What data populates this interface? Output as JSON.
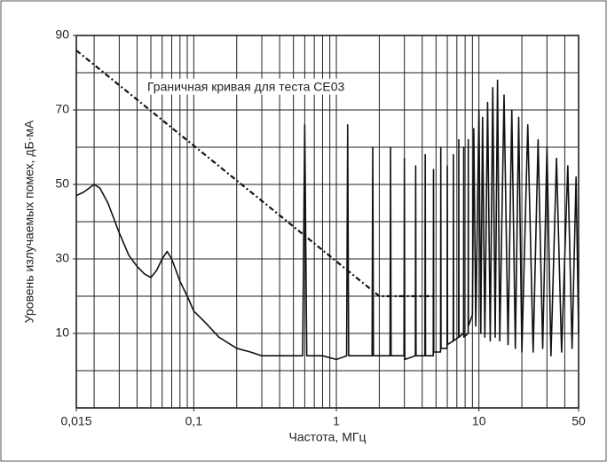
{
  "chart_data": {
    "type": "line",
    "xlabel": "Частота, МГц",
    "ylabel": "Уровень излучаемых помех, дБ·мА",
    "annotation": "Граничная кривая для теста CE03",
    "xscale": "log",
    "xlim": [
      0.015,
      50
    ],
    "ylim": [
      -10,
      90
    ],
    "xticks": [
      {
        "value": 0.015,
        "label": "0,015"
      },
      {
        "value": 0.1,
        "label": "0,1"
      },
      1,
      10,
      50
    ],
    "yticks": [
      10,
      30,
      50,
      70,
      90
    ],
    "xgrid": [
      0.02,
      0.03,
      0.04,
      0.05,
      0.06,
      0.07,
      0.08,
      0.09,
      0.1,
      0.2,
      0.3,
      0.4,
      0.5,
      0.6,
      0.7,
      0.8,
      0.9,
      1,
      2,
      3,
      4,
      5,
      6,
      7,
      8,
      9,
      10,
      20,
      30,
      40
    ],
    "ygrid": [
      0,
      10,
      20,
      30,
      40,
      50,
      60,
      70,
      80
    ],
    "grid": true,
    "series": [
      {
        "color": "#111111",
        "style": "solid",
        "x": [
          0.015,
          0.017,
          0.02,
          0.022,
          0.025,
          0.03,
          0.035,
          0.04,
          0.045,
          0.05,
          0.055,
          0.06,
          0.065,
          0.07,
          0.08,
          0.09,
          0.1,
          0.12,
          0.15,
          0.2,
          0.25,
          0.3,
          0.4,
          0.5,
          0.58,
          0.6,
          0.62,
          0.8,
          1.0,
          1.18,
          1.2,
          1.22,
          1.5,
          1.78,
          1.8,
          1.82,
          2.38,
          2.4,
          2.42,
          2.98,
          3.0,
          3.02,
          3.58,
          3.6,
          3.62,
          4.18,
          4.2,
          4.22,
          4.78,
          4.8,
          4.82,
          5.38,
          5.4,
          5.42,
          5.98,
          6.0,
          6.02,
          6.6,
          6.62,
          6.64,
          7.2,
          7.22,
          7.24,
          7.8,
          7.82,
          7.84,
          8.4,
          8.42,
          8.44,
          9,
          9.2,
          9.5,
          10,
          10.3,
          10.6,
          11,
          11.5,
          12,
          12.5,
          13,
          13.5,
          14,
          15,
          16,
          17,
          18,
          19,
          20,
          22,
          24,
          26,
          28,
          30,
          32,
          35,
          38,
          42,
          45,
          48,
          50
        ],
        "values": [
          47,
          48,
          50,
          49,
          45,
          37,
          31,
          28,
          26,
          25,
          27,
          30,
          32,
          30,
          24,
          20,
          16,
          13,
          9,
          6,
          5,
          4,
          4,
          4,
          4,
          66,
          4,
          4,
          3,
          4,
          66,
          4,
          4,
          4,
          60,
          4,
          4,
          60,
          4,
          4,
          57,
          3,
          4,
          55,
          4,
          4,
          58,
          4,
          4,
          54,
          5,
          5,
          60,
          6,
          6,
          55,
          7,
          8,
          58,
          8,
          9,
          62,
          9,
          10,
          60,
          9,
          10,
          62,
          12,
          15,
          65,
          12,
          70,
          10,
          68,
          9,
          72,
          8,
          76,
          9,
          78,
          8,
          74,
          7,
          70,
          6,
          68,
          5,
          66,
          5,
          62,
          6,
          60,
          4,
          57,
          5,
          55,
          6,
          52,
          10
        ]
      },
      {
        "color": "#111111",
        "style": "dashdot",
        "x": [
          0.015,
          2,
          5
        ],
        "values": [
          86,
          20,
          20
        ]
      }
    ]
  }
}
